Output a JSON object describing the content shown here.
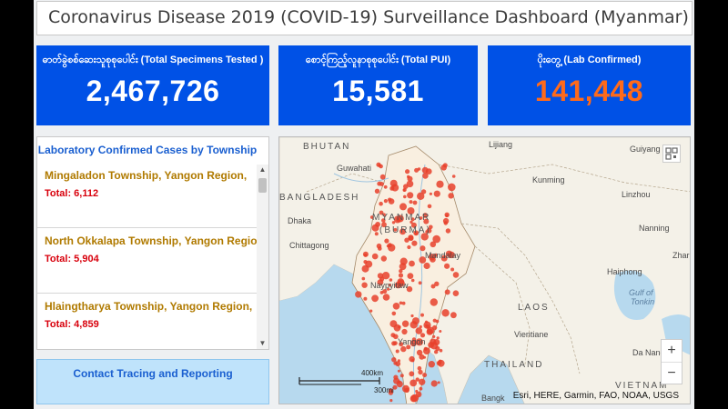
{
  "header": {
    "title": "Coronavirus Disease 2019 (COVID-19) Surveillance Dashboard (Myanmar)"
  },
  "stats": [
    {
      "label": "ဓာတ်ခွဲစစ်ဆေးသူစုစုပေါင်း (Total Specimens Tested )",
      "value": "2,467,726"
    },
    {
      "label": "စောင့်ကြည့်လူနာစုစုပေါင်း (Total PUI)",
      "value": "15,581"
    },
    {
      "label": "ပိုးတွေ့ (Lab Confirmed)",
      "value": "141,448"
    }
  ],
  "township_list": {
    "title": "Laboratory Confirmed Cases by Township",
    "items": [
      {
        "place": "Mingaladon Township, Yangon Region,",
        "total": "Total: 6,112"
      },
      {
        "place": "North Okkalapa Township, Yangon Region,",
        "total": "Total: 5,904"
      },
      {
        "place": "Hlaingtharya Township, Yangon Region,",
        "total": "Total: 4,859"
      }
    ]
  },
  "contact_tracing": {
    "label": "Contact Tracing and Reporting"
  },
  "map": {
    "labels": {
      "bhutan": "BHUTAN",
      "lijiang": "Lijiang",
      "guiyang": "Guiyang",
      "guwahati": "Guwahati",
      "kunming": "Kunming",
      "bangladesh": "BANGLADESH",
      "linzhou": "Linzhou",
      "dhaka": "Dhaka",
      "myanmar": "MYANMAR",
      "burma": "(BURMA)",
      "nanning": "Nanning",
      "chittagong": "Chittagong",
      "mandalay": "Mandalay",
      "zhanjiang": "Zhar",
      "haiphong": "Haiphong",
      "naypyitaw": "Naypyitaw",
      "gulf_tonkin_1": "Gulf of",
      "gulf_tonkin_2": "Tonkin",
      "laos": "LAOS",
      "vientiane": "Vientiane",
      "yangon": "Yangon",
      "thailand": "THAILAND",
      "danang": "Da Nang",
      "vietnam": "VIETNAM",
      "bangkok": "Bangk"
    },
    "scale_km": "400km",
    "scale_mi": "300mi",
    "zoom_in": "+",
    "zoom_out": "−",
    "attribution": "Esri, HERE, Garmin, FAO, NOAA, USGS",
    "colors": {
      "dot": "#e8412c",
      "land": "#f4f1e8",
      "water": "#b7d9ee"
    }
  }
}
